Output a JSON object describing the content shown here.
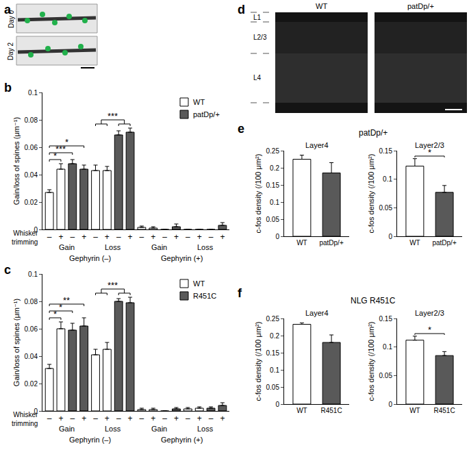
{
  "images": [
    {
      "panel": "a",
      "labels": [
        "Day 0",
        "Day 2"
      ]
    },
    {
      "panel": "d",
      "labels": [
        "WT",
        "patDp/+"
      ],
      "layers": [
        "L1",
        "L2/3",
        "L4"
      ]
    }
  ],
  "chart_data": [
    {
      "type": "bar",
      "panel": "b",
      "ylabel": "Gain/loss of spines (μm⁻¹)",
      "xlabel": "Whisker trimming",
      "categories": [
        "–",
        "+",
        "–",
        "+",
        "–",
        "+",
        "–",
        "+",
        "–",
        "+",
        "–",
        "+",
        "–",
        "+",
        "–",
        "+"
      ],
      "groups": [
        "Gain",
        "Gain",
        "Gain",
        "Gain",
        "Loss",
        "Loss",
        "Loss",
        "Loss",
        "Gain",
        "Gain",
        "Gain",
        "Gain",
        "Loss",
        "Loss",
        "Loss",
        "Loss"
      ],
      "supergroups": [
        "Gephyrin (–)",
        "Gephyrin (–)",
        "Gephyrin (–)",
        "Gephyrin (–)",
        "Gephyrin (–)",
        "Gephyrin (–)",
        "Gephyrin (–)",
        "Gephyrin (–)",
        "Gephyrin (+)",
        "Gephyrin (+)",
        "Gephyrin (+)",
        "Gephyrin (+)",
        "Gephyrin (+)",
        "Gephyrin (+)",
        "Gephyrin (+)",
        "Gephyrin (+)"
      ],
      "series": [
        {
          "name": "WT",
          "color": "#ffffff",
          "values": [
            0.027,
            0.044,
            null,
            null,
            0.043,
            0.043,
            null,
            null,
            0.0015,
            0.001,
            null,
            null,
            0,
            0,
            null,
            null
          ],
          "errors": [
            0.002,
            0.004,
            null,
            null,
            0.004,
            0.003,
            null,
            null,
            0.001,
            0.001,
            null,
            null,
            0,
            0,
            null,
            null
          ]
        },
        {
          "name": "patDp/+",
          "color": "#595959",
          "values": [
            null,
            null,
            0.048,
            0.044,
            null,
            null,
            0.069,
            0.071,
            null,
            null,
            0,
            0.002,
            null,
            null,
            0,
            0.003
          ],
          "errors": [
            null,
            null,
            0.003,
            0.003,
            null,
            null,
            0.003,
            0.003,
            null,
            null,
            0,
            0.002,
            null,
            null,
            0,
            0.002
          ]
        }
      ],
      "ylim": [
        0,
        0.1
      ],
      "yticks": [
        0,
        0.02,
        0.04,
        0.06,
        0.08,
        0.1
      ],
      "grid": false,
      "legend": "upper right",
      "annotations": [
        {
          "text": "*",
          "from": [
            0
          ],
          "to": [
            1
          ]
        },
        {
          "text": "***",
          "from": [
            0
          ],
          "to": [
            2
          ]
        },
        {
          "text": "*",
          "from": [
            0
          ],
          "to": [
            3
          ]
        },
        {
          "text": "***",
          "from": [
            4,
            5
          ],
          "to": [
            6,
            7
          ]
        }
      ]
    },
    {
      "type": "bar",
      "panel": "c",
      "ylabel": "Gain/loss of spines (μm⁻¹)",
      "xlabel": "Whisker trimming",
      "categories": [
        "–",
        "+",
        "–",
        "+",
        "–",
        "+",
        "–",
        "+",
        "–",
        "+",
        "–",
        "+",
        "–",
        "+",
        "–",
        "+"
      ],
      "groups": [
        "Gain",
        "Gain",
        "Gain",
        "Gain",
        "Loss",
        "Loss",
        "Loss",
        "Loss",
        "Gain",
        "Gain",
        "Gain",
        "Gain",
        "Loss",
        "Loss",
        "Loss",
        "Loss"
      ],
      "supergroups": [
        "Gephyrin (–)",
        "Gephyrin (–)",
        "Gephyrin (–)",
        "Gephyrin (–)",
        "Gephyrin (–)",
        "Gephyrin (–)",
        "Gephyrin (–)",
        "Gephyrin (–)",
        "Gephyrin (+)",
        "Gephyrin (+)",
        "Gephyrin (+)",
        "Gephyrin (+)",
        "Gephyrin (+)",
        "Gephyrin (+)",
        "Gephyrin (+)",
        "Gephyrin (+)"
      ],
      "series": [
        {
          "name": "WT",
          "color": "#ffffff",
          "values": [
            0.031,
            0.06,
            null,
            null,
            0.041,
            0.045,
            null,
            null,
            0.001,
            0.001,
            null,
            null,
            0.0015,
            0.002,
            null,
            null
          ],
          "errors": [
            0.003,
            0.005,
            null,
            null,
            0.004,
            0.005,
            null,
            null,
            0.001,
            0.001,
            null,
            null,
            0.001,
            0.001,
            null,
            null
          ]
        },
        {
          "name": "R451C",
          "color": "#595959",
          "values": [
            null,
            null,
            0.059,
            0.062,
            null,
            null,
            0.08,
            0.079,
            null,
            null,
            0,
            0.0015,
            null,
            null,
            0.002,
            0.004
          ],
          "errors": [
            null,
            null,
            0.005,
            0.006,
            null,
            null,
            0.002,
            0.004,
            null,
            null,
            0,
            0.001,
            null,
            null,
            0.001,
            0.002
          ]
        }
      ],
      "ylim": [
        0,
        0.1
      ],
      "yticks": [
        0,
        0.02,
        0.04,
        0.06,
        0.08,
        0.1
      ],
      "grid": false,
      "legend": "upper right",
      "annotations": [
        {
          "text": "*",
          "from": [
            0
          ],
          "to": [
            1
          ]
        },
        {
          "text": "*",
          "from": [
            0
          ],
          "to": [
            2
          ]
        },
        {
          "text": "**",
          "from": [
            0
          ],
          "to": [
            3
          ]
        },
        {
          "text": "***",
          "from": [
            4,
            5
          ],
          "to": [
            6,
            7
          ]
        }
      ]
    },
    {
      "type": "bar",
      "panel": "e",
      "title": "patDp/+",
      "ylabel": "c-fos density (/100 μm²)",
      "subplots": [
        {
          "subtitle": "Layer4",
          "categories": [
            "WT",
            "patDp/+"
          ],
          "values": [
            0.225,
            0.185
          ],
          "errors": [
            0.012,
            0.03
          ],
          "colors": [
            "#ffffff",
            "#595959"
          ],
          "ylim": [
            0,
            0.25
          ],
          "yticks": [
            0,
            0.05,
            0.1,
            0.15,
            0.2,
            0.25
          ],
          "annotations": []
        },
        {
          "subtitle": "Layer2/3",
          "categories": [
            "WT",
            "patDp/+"
          ],
          "values": [
            0.123,
            0.077
          ],
          "errors": [
            0.013,
            0.012
          ],
          "colors": [
            "#ffffff",
            "#595959"
          ],
          "ylim": [
            0,
            0.15
          ],
          "yticks": [
            0,
            0.05,
            0.1,
            0.15
          ],
          "annotations": [
            {
              "text": "*",
              "from": [
                0
              ],
              "to": [
                1
              ]
            }
          ]
        }
      ]
    },
    {
      "type": "bar",
      "panel": "f",
      "title": "NLG R451C",
      "ylabel": "c-fos density (/100 μm²)",
      "subplots": [
        {
          "subtitle": "Layer4",
          "categories": [
            "WT",
            "R451C"
          ],
          "values": [
            0.233,
            0.18
          ],
          "errors": [
            0.004,
            0.022
          ],
          "colors": [
            "#ffffff",
            "#595959"
          ],
          "ylim": [
            0,
            0.25
          ],
          "yticks": [
            0,
            0.05,
            0.1,
            0.15,
            0.2,
            0.25
          ],
          "annotations": []
        },
        {
          "subtitle": "Layer2/3",
          "categories": [
            "WT",
            "R451C"
          ],
          "values": [
            0.112,
            0.085
          ],
          "errors": [
            0.007,
            0.007
          ],
          "colors": [
            "#ffffff",
            "#595959"
          ],
          "ylim": [
            0,
            0.15
          ],
          "yticks": [
            0,
            0.05,
            0.1,
            0.15
          ],
          "annotations": [
            {
              "text": "*",
              "from": [
                0
              ],
              "to": [
                1
              ]
            }
          ]
        }
      ]
    }
  ]
}
